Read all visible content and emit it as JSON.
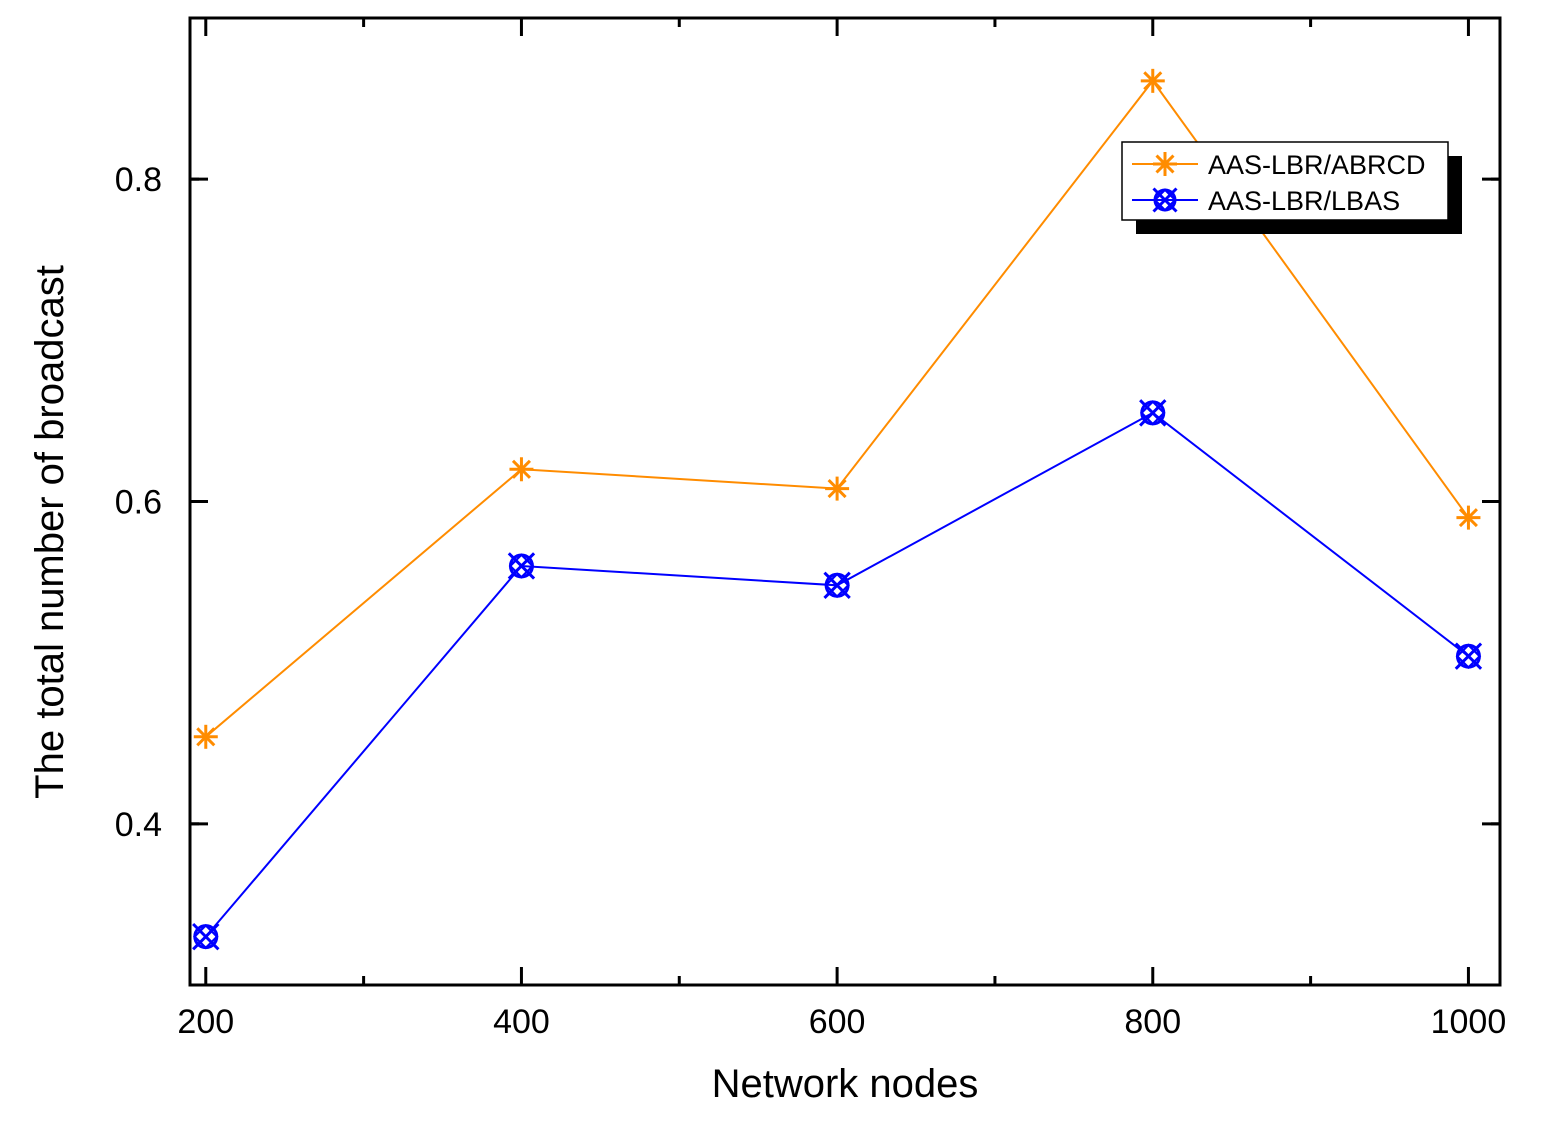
{
  "chart_data": {
    "type": "line",
    "title": "",
    "xlabel": "Network nodes",
    "ylabel": "The total number of broadcast",
    "x": [
      200,
      400,
      600,
      800,
      1000
    ],
    "xlim": [
      190,
      1020
    ],
    "ylim": [
      0.3,
      0.9
    ],
    "xticks": [
      200,
      400,
      600,
      800,
      1000
    ],
    "yticks": [
      0.4,
      0.6,
      0.8
    ],
    "x_tick_labels": [
      "200",
      "400",
      "600",
      "800",
      "1000"
    ],
    "y_tick_labels": [
      "0.4",
      "0.6",
      "0.8"
    ],
    "grid": false,
    "legend_position": "top-right",
    "series": [
      {
        "name": "AAS-LBR/ABRCD",
        "color": "#ff8c00",
        "marker": "star",
        "values": [
          0.454,
          0.62,
          0.608,
          0.861,
          0.59
        ]
      },
      {
        "name": "AAS-LBR/LBAS",
        "color": "#0000ff",
        "marker": "circle-x",
        "values": [
          0.33,
          0.56,
          0.548,
          0.655,
          0.504
        ]
      }
    ]
  }
}
